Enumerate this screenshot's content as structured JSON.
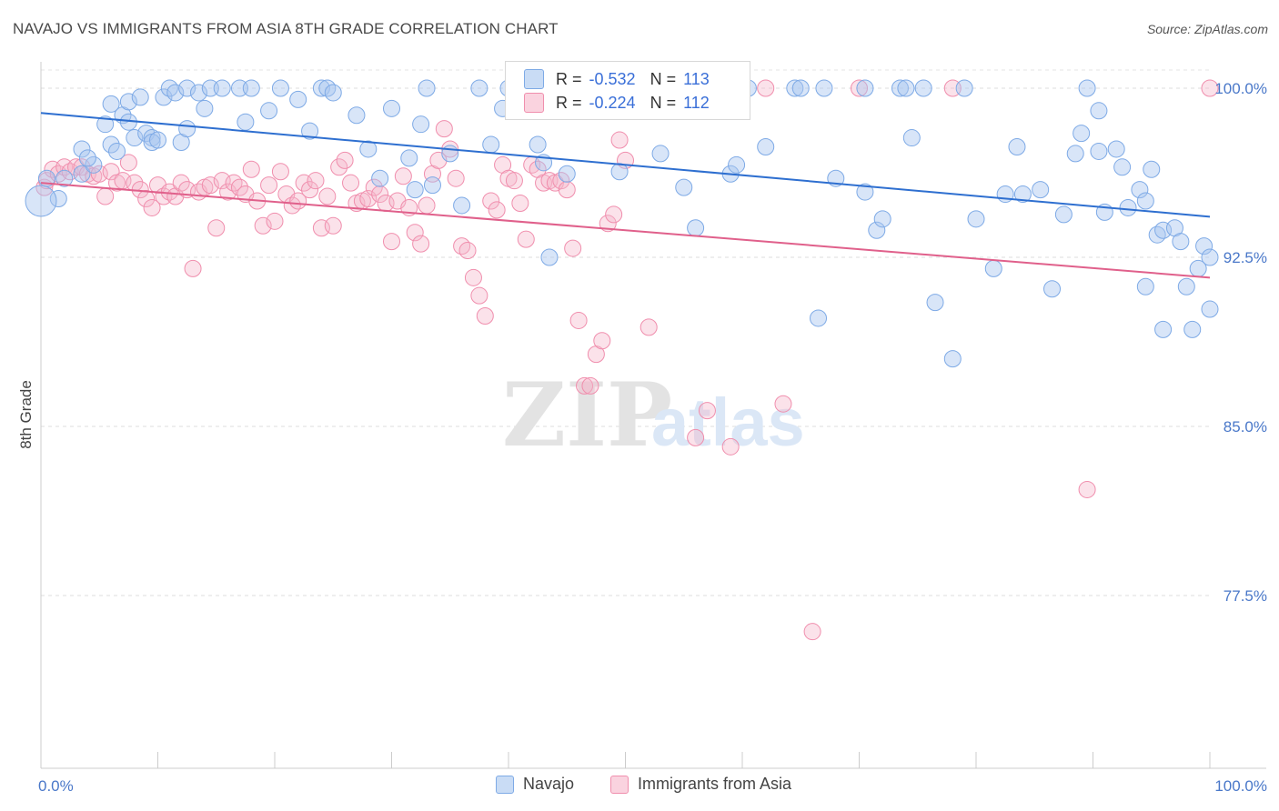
{
  "header": {
    "title": "NAVAJO VS IMMIGRANTS FROM ASIA 8TH GRADE CORRELATION CHART",
    "source": "Source: ZipAtlas.com"
  },
  "stats_legend": {
    "rows": [
      {
        "r_label": "R =",
        "r_value": "-0.532",
        "n_label": "N =",
        "n_value": "113",
        "color": "#a9c5ef"
      },
      {
        "r_label": "R =",
        "r_value": "-0.224",
        "n_label": "N =",
        "n_value": "112",
        "color": "#f6b6ca"
      }
    ]
  },
  "bottom_legend": {
    "items": [
      {
        "label": "Navajo",
        "color": "#a9c5ef"
      },
      {
        "label": "Immigrants from Asia",
        "color": "#f6b6ca"
      }
    ]
  },
  "watermark": {
    "zip": "ZIP",
    "atlas": "atlas"
  },
  "chart_data": {
    "type": "scatter",
    "title": "NAVAJO VS IMMIGRANTS FROM ASIA 8TH GRADE CORRELATION CHART",
    "xlabel": "",
    "ylabel": "8th Grade",
    "xlim": [
      0,
      100
    ],
    "ylim": [
      70.0,
      101.0
    ],
    "x_tick_labels": [
      "0.0%",
      "100.0%"
    ],
    "y_ticks": [
      77.5,
      85.0,
      92.5,
      100.0
    ],
    "y_tick_labels": [
      "77.5%",
      "85.0%",
      "92.5%",
      "100.0%"
    ],
    "grid": "horizontal dashed",
    "legend_position": "top-center",
    "series": [
      {
        "name": "Navajo",
        "color": "#7eaae6",
        "trend": {
          "x": [
            0,
            100
          ],
          "y": [
            98.9,
            94.3
          ]
        },
        "points": [
          [
            0.5,
            96.0
          ],
          [
            1.5,
            95.1
          ],
          [
            2.0,
            96.0
          ],
          [
            3.5,
            96.2
          ],
          [
            4.5,
            96.6
          ],
          [
            3.5,
            97.3
          ],
          [
            4.0,
            96.9
          ],
          [
            5.5,
            98.4
          ],
          [
            6.0,
            99.3
          ],
          [
            6.0,
            97.5
          ],
          [
            6.5,
            97.2
          ],
          [
            7.0,
            98.8
          ],
          [
            7.5,
            98.5
          ],
          [
            7.5,
            99.4
          ],
          [
            8.5,
            99.6
          ],
          [
            8.0,
            97.8
          ],
          [
            9.0,
            98.0
          ],
          [
            9.5,
            97.8
          ],
          [
            9.5,
            97.6
          ],
          [
            10.0,
            97.7
          ],
          [
            10.5,
            99.6
          ],
          [
            11.0,
            100.0
          ],
          [
            11.5,
            99.8
          ],
          [
            12.0,
            97.6
          ],
          [
            12.5,
            98.2
          ],
          [
            12.5,
            100.0
          ],
          [
            13.5,
            99.8
          ],
          [
            14.0,
            99.1
          ],
          [
            14.5,
            100.0
          ],
          [
            15.5,
            100.0
          ],
          [
            17.0,
            100.0
          ],
          [
            17.5,
            98.5
          ],
          [
            18.0,
            100.0
          ],
          [
            19.5,
            99.0
          ],
          [
            20.5,
            100.0
          ],
          [
            22.0,
            99.5
          ],
          [
            23.0,
            98.1
          ],
          [
            24.0,
            100.0
          ],
          [
            24.5,
            100.0
          ],
          [
            25.0,
            99.8
          ],
          [
            27.0,
            98.8
          ],
          [
            28.0,
            97.3
          ],
          [
            29.0,
            96.0
          ],
          [
            30.0,
            99.1
          ],
          [
            31.5,
            96.9
          ],
          [
            32.0,
            95.5
          ],
          [
            32.5,
            98.4
          ],
          [
            33.0,
            100.0
          ],
          [
            33.5,
            95.7
          ],
          [
            35.0,
            97.1
          ],
          [
            36.0,
            94.8
          ],
          [
            37.5,
            100.0
          ],
          [
            38.5,
            97.5
          ],
          [
            39.5,
            99.1
          ],
          [
            40.0,
            100.0
          ],
          [
            41.0,
            99.0
          ],
          [
            42.5,
            97.5
          ],
          [
            43.0,
            96.7
          ],
          [
            43.5,
            92.5
          ],
          [
            44.5,
            100.0
          ],
          [
            45.0,
            96.2
          ],
          [
            46.0,
            100.0
          ],
          [
            46.5,
            100.0
          ],
          [
            47.0,
            100.0
          ],
          [
            49.5,
            96.3
          ],
          [
            51.5,
            100.0
          ],
          [
            53.0,
            97.1
          ],
          [
            55.0,
            95.6
          ],
          [
            56.0,
            93.8
          ],
          [
            57.5,
            100.0
          ],
          [
            59.0,
            96.2
          ],
          [
            59.5,
            96.6
          ],
          [
            60.5,
            100.0
          ],
          [
            62.0,
            97.4
          ],
          [
            64.5,
            100.0
          ],
          [
            65.0,
            100.0
          ],
          [
            66.5,
            89.8
          ],
          [
            67.0,
            100.0
          ],
          [
            68.0,
            96.0
          ],
          [
            70.5,
            95.4
          ],
          [
            70.5,
            100.0
          ],
          [
            71.5,
            93.7
          ],
          [
            72.0,
            94.2
          ],
          [
            73.5,
            100.0
          ],
          [
            74.0,
            100.0
          ],
          [
            74.5,
            97.8
          ],
          [
            75.5,
            100.0
          ],
          [
            76.5,
            90.5
          ],
          [
            78.0,
            88.0
          ],
          [
            79.0,
            100.0
          ],
          [
            80.0,
            94.2
          ],
          [
            81.5,
            92.0
          ],
          [
            82.5,
            95.3
          ],
          [
            83.5,
            97.4
          ],
          [
            84.0,
            95.3
          ],
          [
            85.5,
            95.5
          ],
          [
            86.5,
            91.1
          ],
          [
            87.5,
            94.4
          ],
          [
            88.5,
            97.1
          ],
          [
            89.0,
            98.0
          ],
          [
            89.5,
            100.0
          ],
          [
            90.5,
            99.0
          ],
          [
            90.5,
            97.2
          ],
          [
            91.0,
            94.5
          ],
          [
            92.0,
            97.3
          ],
          [
            92.5,
            96.5
          ],
          [
            93.0,
            94.7
          ],
          [
            94.0,
            95.5
          ],
          [
            94.5,
            95.0
          ],
          [
            94.5,
            91.2
          ],
          [
            95.0,
            96.4
          ],
          [
            95.5,
            93.5
          ],
          [
            96.0,
            93.7
          ],
          [
            96.0,
            89.3
          ],
          [
            97.0,
            93.8
          ],
          [
            97.5,
            93.2
          ],
          [
            98.0,
            91.2
          ],
          [
            98.5,
            89.3
          ],
          [
            99.0,
            92.0
          ],
          [
            99.5,
            93.0
          ],
          [
            100.0,
            92.5
          ],
          [
            100.0,
            90.2
          ]
        ]
      },
      {
        "name": "Immigrants from Asia",
        "color": "#f08ead",
        "trend": {
          "x": [
            0,
            100
          ],
          "y": [
            95.8,
            91.6
          ]
        },
        "points": [
          [
            0.3,
            95.6
          ],
          [
            0.5,
            95.9
          ],
          [
            1.0,
            96.4
          ],
          [
            1.5,
            96.2
          ],
          [
            2.0,
            96.5
          ],
          [
            2.5,
            96.3
          ],
          [
            3.0,
            96.5
          ],
          [
            3.5,
            96.5
          ],
          [
            4.0,
            96.2
          ],
          [
            4.5,
            96.1
          ],
          [
            5.0,
            96.2
          ],
          [
            5.5,
            95.2
          ],
          [
            6.0,
            96.3
          ],
          [
            6.5,
            95.8
          ],
          [
            7.0,
            95.9
          ],
          [
            7.5,
            96.7
          ],
          [
            8.0,
            95.8
          ],
          [
            8.5,
            95.5
          ],
          [
            9.0,
            95.1
          ],
          [
            9.5,
            94.7
          ],
          [
            10.0,
            95.7
          ],
          [
            10.5,
            95.2
          ],
          [
            11.0,
            95.4
          ],
          [
            11.5,
            95.2
          ],
          [
            12.0,
            95.8
          ],
          [
            12.5,
            95.5
          ],
          [
            13.0,
            92.0
          ],
          [
            13.5,
            95.4
          ],
          [
            14.0,
            95.6
          ],
          [
            14.5,
            95.7
          ],
          [
            15.0,
            93.8
          ],
          [
            15.5,
            95.9
          ],
          [
            16.0,
            95.4
          ],
          [
            16.5,
            95.8
          ],
          [
            17.0,
            95.6
          ],
          [
            17.5,
            95.3
          ],
          [
            18.0,
            96.4
          ],
          [
            18.5,
            95.0
          ],
          [
            19.0,
            93.9
          ],
          [
            19.5,
            95.7
          ],
          [
            20.0,
            94.1
          ],
          [
            20.5,
            96.3
          ],
          [
            21.0,
            95.3
          ],
          [
            21.5,
            94.8
          ],
          [
            22.0,
            95.0
          ],
          [
            22.5,
            95.8
          ],
          [
            23.0,
            95.5
          ],
          [
            23.5,
            95.9
          ],
          [
            24.0,
            93.8
          ],
          [
            24.5,
            95.2
          ],
          [
            25.0,
            93.9
          ],
          [
            25.5,
            96.5
          ],
          [
            26.0,
            96.8
          ],
          [
            26.5,
            95.8
          ],
          [
            27.0,
            94.9
          ],
          [
            27.5,
            95.0
          ],
          [
            28.0,
            95.1
          ],
          [
            28.5,
            95.6
          ],
          [
            29.0,
            95.3
          ],
          [
            29.5,
            94.9
          ],
          [
            30.0,
            93.2
          ],
          [
            30.5,
            95.0
          ],
          [
            31.0,
            96.1
          ],
          [
            31.5,
            94.7
          ],
          [
            32.0,
            93.6
          ],
          [
            32.5,
            93.1
          ],
          [
            33.0,
            94.8
          ],
          [
            33.5,
            96.2
          ],
          [
            34.0,
            96.8
          ],
          [
            34.5,
            98.2
          ],
          [
            35.0,
            97.3
          ],
          [
            35.5,
            96.0
          ],
          [
            36.0,
            93.0
          ],
          [
            36.5,
            92.8
          ],
          [
            37.0,
            91.6
          ],
          [
            37.5,
            90.8
          ],
          [
            38.0,
            89.9
          ],
          [
            38.5,
            95.0
          ],
          [
            39.0,
            94.6
          ],
          [
            39.5,
            96.6
          ],
          [
            40.0,
            96.0
          ],
          [
            40.5,
            95.9
          ],
          [
            41.0,
            94.9
          ],
          [
            41.5,
            93.3
          ],
          [
            42.0,
            96.6
          ],
          [
            42.5,
            96.4
          ],
          [
            43.0,
            95.8
          ],
          [
            43.5,
            95.9
          ],
          [
            44.0,
            95.8
          ],
          [
            44.5,
            95.9
          ],
          [
            45.0,
            95.5
          ],
          [
            45.5,
            92.9
          ],
          [
            46.0,
            89.7
          ],
          [
            46.5,
            86.8
          ],
          [
            47.0,
            86.8
          ],
          [
            47.5,
            88.2
          ],
          [
            48.0,
            88.8
          ],
          [
            48.5,
            94.0
          ],
          [
            49.0,
            94.4
          ],
          [
            49.5,
            97.7
          ],
          [
            50.0,
            96.8
          ],
          [
            52.0,
            89.4
          ],
          [
            53.0,
            100.0
          ],
          [
            54.0,
            100.0
          ],
          [
            56.0,
            84.5
          ],
          [
            57.0,
            85.7
          ],
          [
            59.0,
            84.1
          ],
          [
            62.0,
            100.0
          ],
          [
            63.5,
            86.0
          ],
          [
            66.0,
            75.9
          ],
          [
            70.0,
            100.0
          ],
          [
            78.0,
            100.0
          ],
          [
            89.5,
            82.2
          ],
          [
            100.0,
            100.0
          ]
        ]
      }
    ]
  }
}
